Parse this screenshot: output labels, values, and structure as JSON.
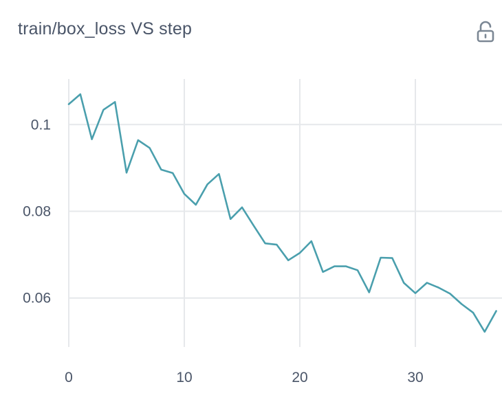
{
  "header": {
    "title": "train/box_loss VS step",
    "lock_icon": "unlocked-padlock-icon"
  },
  "colors": {
    "line": "#4a9fad",
    "grid": "#e6e8eb",
    "text": "#4a5568"
  },
  "chart_data": {
    "type": "line",
    "title": "train/box_loss VS step",
    "xlabel": "",
    "ylabel": "",
    "xlim": [
      0,
      37.5
    ],
    "ylim": [
      0.0487,
      0.1105
    ],
    "xticks": [
      0,
      10,
      20,
      30
    ],
    "xtick_labels": [
      "0",
      "10",
      "20",
      "30"
    ],
    "yticks": [
      0.06,
      0.08,
      0.1
    ],
    "ytick_labels": [
      "0.06",
      "0.08",
      "0.1"
    ],
    "grid": true,
    "series": [
      {
        "x": [
          0,
          1,
          2,
          3,
          4,
          5,
          6,
          7,
          8,
          9,
          10,
          11,
          12,
          13,
          14,
          15,
          16,
          17,
          18,
          19,
          20,
          21,
          22,
          23,
          24,
          25,
          26,
          27,
          28,
          29,
          30,
          31,
          32,
          33,
          34,
          35,
          36,
          37
        ],
        "y": [
          0.1047,
          0.107,
          0.0966,
          0.1034,
          0.1052,
          0.0889,
          0.0964,
          0.0946,
          0.0896,
          0.0888,
          0.084,
          0.0815,
          0.0862,
          0.0886,
          0.0782,
          0.0809,
          0.0767,
          0.0726,
          0.0723,
          0.0687,
          0.0704,
          0.0731,
          0.066,
          0.0673,
          0.0673,
          0.0664,
          0.0613,
          0.0693,
          0.0692,
          0.0635,
          0.0611,
          0.0635,
          0.0624,
          0.061,
          0.0586,
          0.0566,
          0.0522,
          0.057
        ]
      }
    ]
  }
}
